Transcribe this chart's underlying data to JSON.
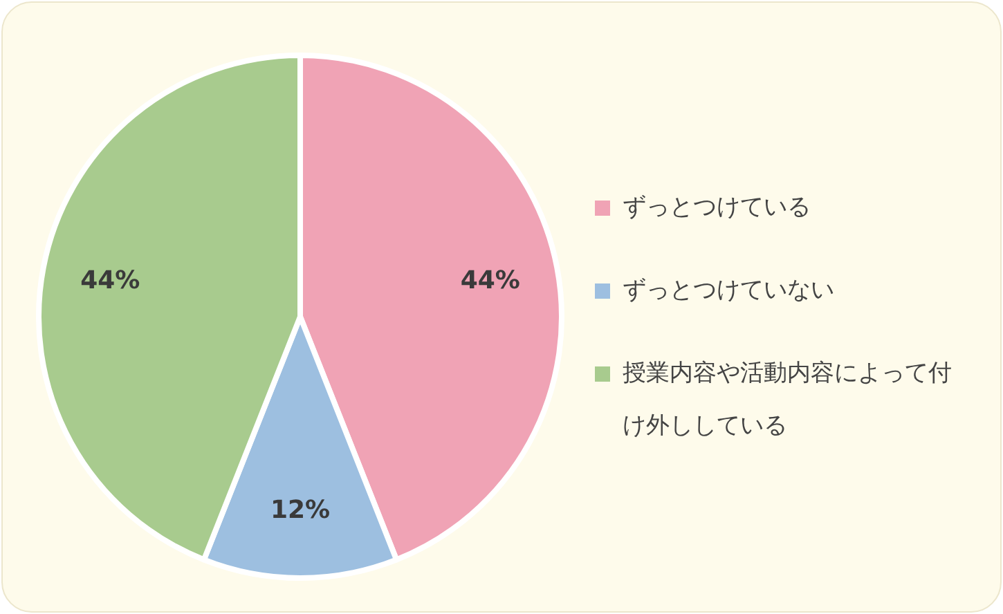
{
  "chart_data": {
    "type": "pie",
    "categories": [
      "ずっとつけている",
      "ずっとつけていない",
      "授業内容や活動内容によって付け外ししている"
    ],
    "values": [
      44,
      12,
      44
    ],
    "colors": [
      "#f0a3b5",
      "#9dbfe0",
      "#a8cb8e"
    ],
    "value_labels": [
      "44%",
      "12%",
      "44%"
    ],
    "legend": "right"
  }
}
